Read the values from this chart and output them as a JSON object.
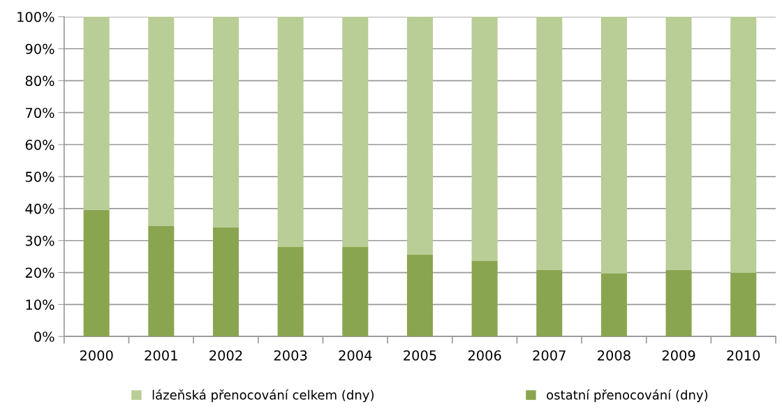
{
  "chart_data": {
    "type": "bar",
    "stacked": true,
    "categories": [
      "2000",
      "2001",
      "2002",
      "2003",
      "2004",
      "2005",
      "2006",
      "2007",
      "2008",
      "2009",
      "2010"
    ],
    "series": [
      {
        "name": "ostatní přenocování (dny)",
        "color": "#8aa54f",
        "values": [
          39.6,
          34.5,
          34.2,
          28.0,
          28.0,
          25.7,
          23.6,
          20.9,
          19.7,
          20.9,
          19.9
        ]
      },
      {
        "name": "lázeňská přenocování celkem (dny)",
        "color": "#b9cd96",
        "values": [
          60.4,
          65.5,
          65.8,
          72.0,
          72.0,
          74.3,
          76.4,
          79.1,
          80.3,
          79.1,
          80.1
        ]
      }
    ],
    "ylim": [
      0,
      100
    ],
    "yticks": [
      {
        "value": 0,
        "label": "0%"
      },
      {
        "value": 10,
        "label": "10%"
      },
      {
        "value": 20,
        "label": "20%"
      },
      {
        "value": 30,
        "label": "30%"
      },
      {
        "value": 40,
        "label": "40%"
      },
      {
        "value": 50,
        "label": "50%"
      },
      {
        "value": 60,
        "label": "60%"
      },
      {
        "value": 70,
        "label": "70%"
      },
      {
        "value": 80,
        "label": "80%"
      },
      {
        "value": 90,
        "label": "90%"
      },
      {
        "value": 100,
        "label": "100%"
      }
    ],
    "grid": "y",
    "legend": "bottom"
  }
}
